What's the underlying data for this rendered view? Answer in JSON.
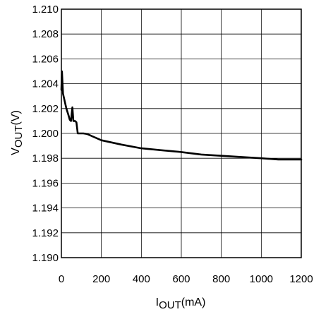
{
  "chart_data": {
    "type": "line",
    "title": "",
    "xlabel": {
      "main": "I",
      "sub": "OUT",
      "unit": "(mA)"
    },
    "ylabel": {
      "main": "V",
      "sub": "OUT",
      "unit": "(V)"
    },
    "xlim": [
      0,
      1200
    ],
    "ylim": [
      1.19,
      1.21
    ],
    "x_ticks": [
      0,
      200,
      400,
      600,
      800,
      1000,
      1200
    ],
    "x_tick_labels": [
      "0",
      "200",
      "400",
      "600",
      "800",
      "1000",
      "1200"
    ],
    "y_ticks": [
      1.19,
      1.192,
      1.194,
      1.196,
      1.198,
      1.2,
      1.202,
      1.204,
      1.206,
      1.208,
      1.21
    ],
    "y_tick_labels": [
      "1.190",
      "1.192",
      "1.194",
      "1.196",
      "1.198",
      "1.200",
      "1.202",
      "1.204",
      "1.206",
      "1.208",
      "1.210"
    ],
    "grid": true,
    "series": [
      {
        "x": [
          0,
          3,
          8,
          15,
          25,
          35,
          42,
          48,
          55,
          60,
          68,
          75,
          82,
          88,
          95,
          110,
          130,
          150,
          200,
          300,
          400,
          500,
          600,
          700,
          800,
          900,
          1000,
          1085,
          1200
        ],
        "y": [
          1.2035,
          1.205,
          1.2032,
          1.2027,
          1.202,
          1.2015,
          1.2011,
          1.201,
          1.2021,
          1.201,
          1.201,
          1.2009,
          1.2,
          1.2,
          1.2,
          1.2,
          1.19995,
          1.1998,
          1.19945,
          1.1991,
          1.1988,
          1.19865,
          1.1985,
          1.1983,
          1.1982,
          1.1981,
          1.198,
          1.1979,
          1.1979
        ]
      }
    ]
  }
}
